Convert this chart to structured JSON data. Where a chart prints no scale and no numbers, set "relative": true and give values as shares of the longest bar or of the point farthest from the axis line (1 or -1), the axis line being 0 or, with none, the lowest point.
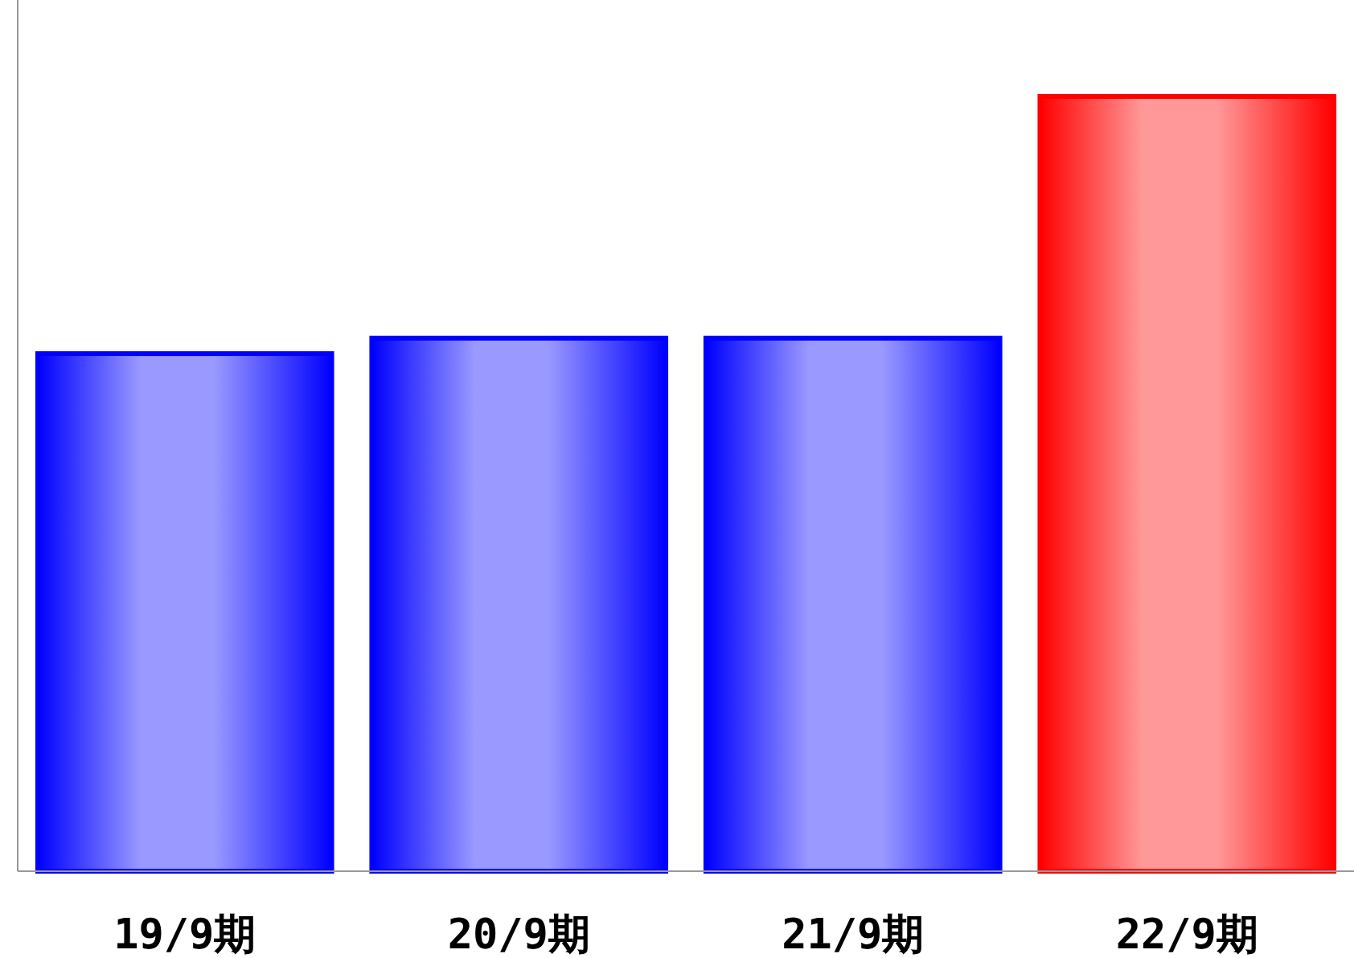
{
  "chart_data": {
    "type": "bar",
    "relative": true,
    "categories": [
      "19/9期",
      "20/9期",
      "21/9期",
      "22/9期"
    ],
    "values": [
      0.668,
      0.688,
      0.688,
      1
    ],
    "colors": [
      "#0000ff",
      "#0000ff",
      "#0000ff",
      "#ff0000"
    ]
  }
}
